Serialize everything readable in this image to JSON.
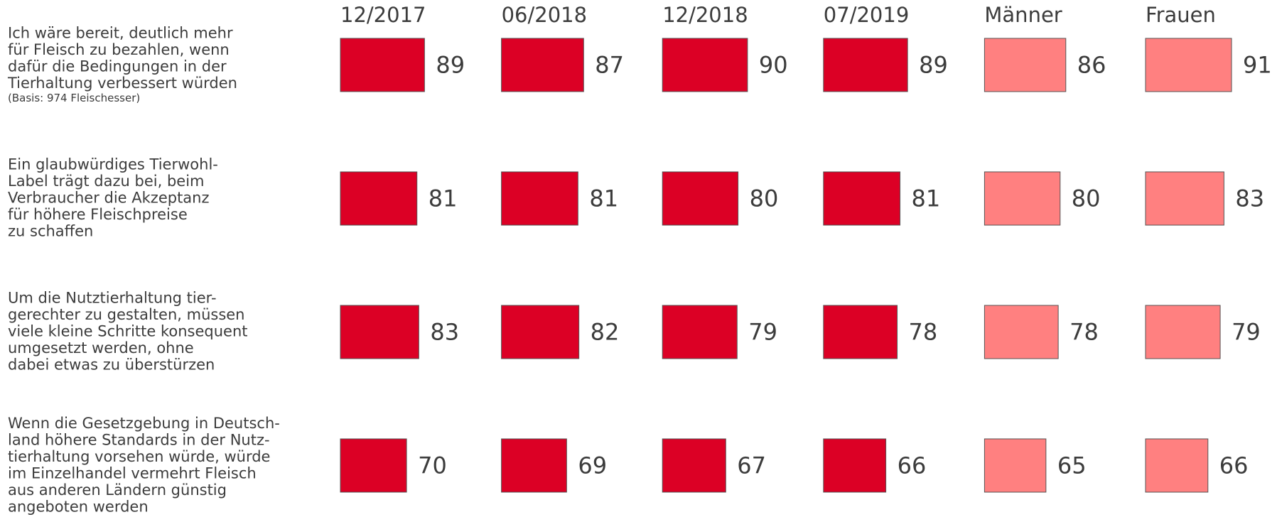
{
  "chart_data": {
    "type": "bar",
    "categories": [
      "Ich wäre bereit, deutlich mehr\nfür Fleisch zu bezahlen, wenn\ndafür die Bedingungen in der\nTierhaltung verbessert würden",
      "Ein glaubwürdiges Tierwohl-\nLabel trägt dazu bei, beim\nVerbraucher die Akzeptanz\nfür höhere Fleischpreise\nzu schaffen",
      "Um die Nutztierhaltung tier-\ngerechter zu gestalten, müssen\nviele kleine Schritte konsequent\numgesetzt werden, ohne\ndabei etwas zu überstürzen",
      "Wenn die Gesetzgebung in Deutsch-\nland höhere Standards in der Nutz-\ntierhaltung vorsehen würde, würde\nim Einzelhandel vermehrt Fleisch\naus anderen Ländern günstig\nangeboten werden"
    ],
    "annotation": "(Basis: 974 Fleischesser)",
    "xlim": [
      0,
      100
    ],
    "series": [
      {
        "name": "12/2017",
        "color": "#dc0025",
        "values": [
          89,
          81,
          83,
          70
        ]
      },
      {
        "name": "06/2018",
        "color": "#dc0025",
        "values": [
          87,
          81,
          82,
          69
        ]
      },
      {
        "name": "12/2018",
        "color": "#dc0025",
        "values": [
          90,
          80,
          79,
          67
        ]
      },
      {
        "name": "07/2019",
        "color": "#dc0025",
        "values": [
          89,
          81,
          78,
          66
        ]
      },
      {
        "name": "Männer",
        "color": "#ff8080",
        "values": [
          86,
          80,
          78,
          65
        ]
      },
      {
        "name": "Frauen",
        "color": "#ff8080",
        "values": [
          91,
          83,
          79,
          66
        ]
      }
    ]
  }
}
